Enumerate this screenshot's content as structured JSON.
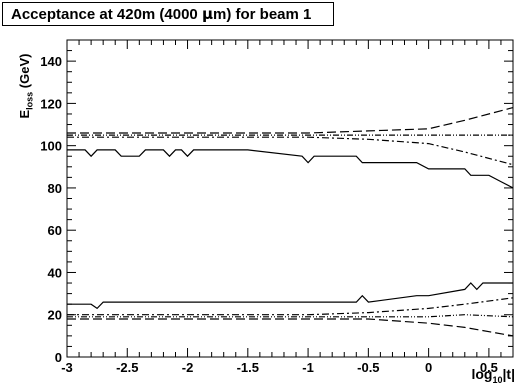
{
  "chart_data": {
    "type": "line",
    "title": "Acceptance at 420m (4000 μm) for beam 1",
    "xlabel": "log10|t|",
    "ylabel": "Eloss (GeV)",
    "xlim": [
      -3,
      0.7
    ],
    "ylim": [
      0,
      150
    ],
    "xticks": [
      -3,
      -2.5,
      -2,
      -1.5,
      -1,
      -0.5,
      0,
      0.5
    ],
    "xtick_labels": [
      "-3",
      "-2.5",
      "-2",
      "-1.5",
      "-1",
      "-0.5",
      "0",
      "0.5"
    ],
    "yticks": [
      0,
      20,
      40,
      60,
      80,
      100,
      120,
      140
    ],
    "ytick_labels": [
      "0",
      "20",
      "40",
      "60",
      "80",
      "100",
      "120",
      "140"
    ],
    "grid": false,
    "series": [
      {
        "style": "solid",
        "x": [
          -3,
          -2.85,
          -2.8,
          -2.75,
          -2.6,
          -2.55,
          -2.5,
          -2.4,
          -2.35,
          -2.2,
          -2.15,
          -2.1,
          -2.05,
          -2.0,
          -1.95,
          -1.5,
          -1.05,
          -1.0,
          -0.95,
          -0.6,
          -0.55,
          -0.1,
          0.0,
          0.3,
          0.35,
          0.5,
          0.6,
          0.7
        ],
        "y": [
          98,
          98,
          95,
          98,
          98,
          95,
          95,
          95,
          98,
          98,
          95,
          98,
          98,
          95,
          98,
          98,
          95,
          92,
          95,
          95,
          92,
          92,
          89,
          89,
          86,
          86,
          83,
          80
        ]
      },
      {
        "style": "solid",
        "x": [
          -3,
          -2.8,
          -2.75,
          -2.7,
          -1.5,
          -0.6,
          -0.55,
          -0.5,
          -0.1,
          0.0,
          0.3,
          0.35,
          0.4,
          0.45,
          0.5,
          0.7
        ],
        "y": [
          25,
          25,
          23,
          26,
          26,
          26,
          29,
          26,
          29,
          29,
          32,
          35,
          32,
          35,
          35,
          35
        ]
      },
      {
        "style": "dashed",
        "x": [
          -3,
          -2,
          -1,
          -0.5,
          0,
          0.3,
          0.7
        ],
        "y": [
          106,
          106,
          106,
          107,
          108,
          112,
          118
        ]
      },
      {
        "style": "dashed",
        "x": [
          -3,
          -2,
          -1,
          -0.5,
          0,
          0.3,
          0.7
        ],
        "y": [
          18,
          18,
          18,
          18,
          16,
          14,
          10
        ]
      },
      {
        "style": "dashdot",
        "x": [
          -3,
          -2,
          -1,
          -0.5,
          0,
          0.3,
          0.7
        ],
        "y": [
          104,
          104,
          104,
          103,
          101,
          97,
          91
        ]
      },
      {
        "style": "dashdot",
        "x": [
          -3,
          -2,
          -1,
          -0.5,
          0,
          0.3,
          0.7
        ],
        "y": [
          20,
          20,
          20,
          21,
          23,
          25,
          28
        ]
      },
      {
        "style": "dashdotdot",
        "x": [
          -3,
          -2,
          -1,
          0,
          0.7
        ],
        "y": [
          105,
          105,
          105,
          105,
          105
        ]
      },
      {
        "style": "dashdotdot",
        "x": [
          -3,
          -2,
          -1,
          0,
          0.3,
          0.7
        ],
        "y": [
          19,
          19,
          19,
          19,
          20,
          19
        ]
      }
    ]
  }
}
